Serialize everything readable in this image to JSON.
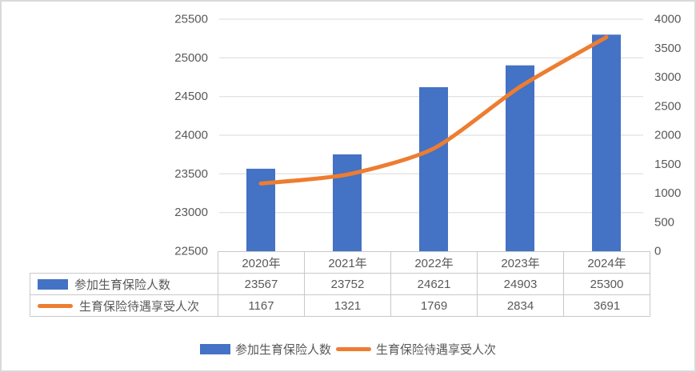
{
  "chart_data": {
    "type": "bar",
    "combo": "bar + line, dual axis",
    "categories": [
      "2020年",
      "2021年",
      "2022年",
      "2023年",
      "2024年"
    ],
    "series": [
      {
        "name": "参加生育保险人数",
        "chart_type": "bar",
        "axis": "left",
        "color": "#4472C4",
        "values": [
          23567,
          23752,
          24621,
          24903,
          25300
        ]
      },
      {
        "name": "生育保险待遇享受人次",
        "chart_type": "line",
        "axis": "right",
        "color": "#ED7D31",
        "values": [
          1167,
          1321,
          1769,
          2834,
          3691
        ]
      }
    ],
    "left_axis": {
      "min": 22500,
      "max": 25500,
      "step": 500,
      "tick_labels": [
        "25500",
        "25000",
        "24500",
        "24000",
        "23500",
        "23000",
        "22500"
      ]
    },
    "right_axis": {
      "min": 0,
      "max": 4000,
      "step": 500,
      "tick_labels": [
        "4000",
        "3500",
        "3000",
        "2500",
        "2000",
        "1500",
        "1000",
        "500",
        "0"
      ]
    },
    "grid": "horizontal gridlines at left-axis ticks",
    "legend_position": "bottom",
    "data_table_shown": true
  },
  "colors": {
    "bar": "#4472C4",
    "line": "#ED7D31",
    "text": "#595959",
    "gridline": "#d9d9d9",
    "table_border": "#c9c9c9",
    "frame_border": "#d9d9d9"
  }
}
